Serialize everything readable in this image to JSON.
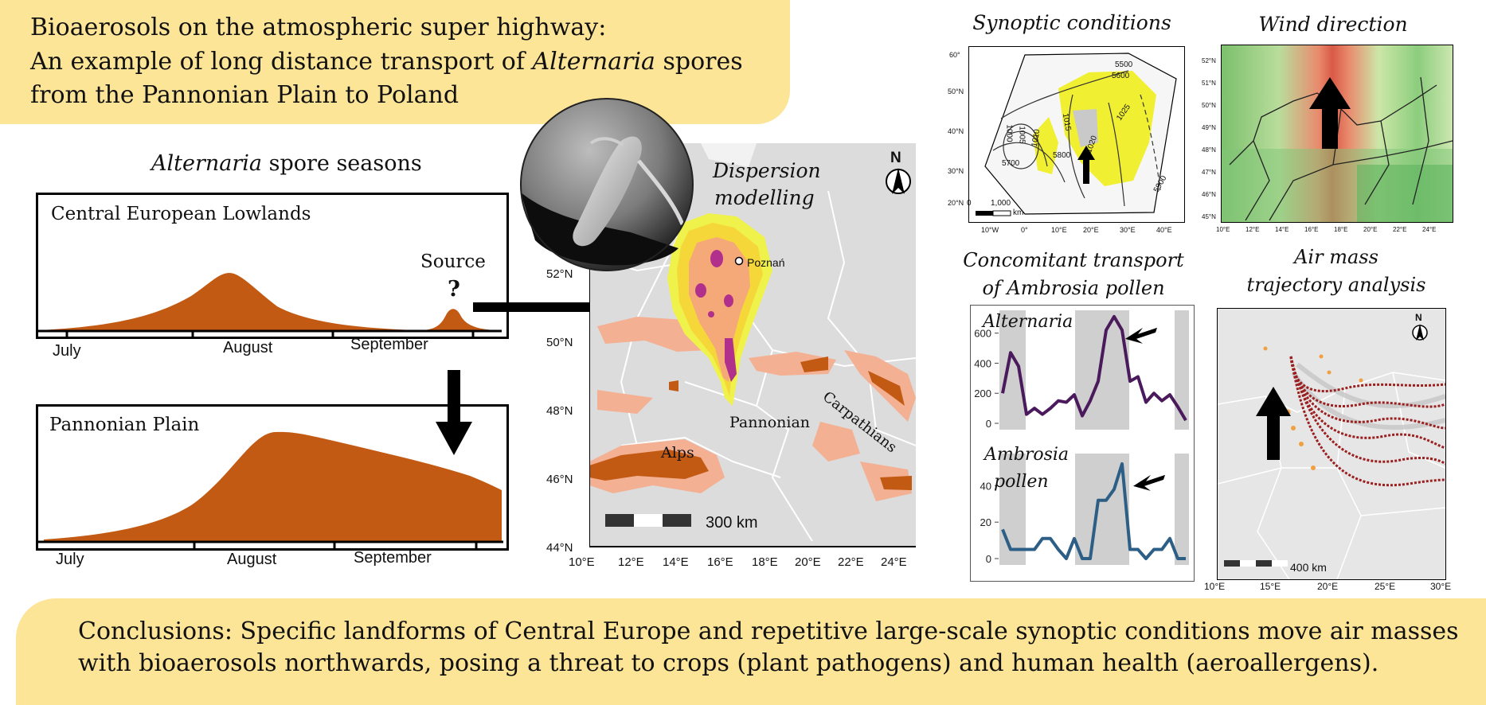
{
  "title": {
    "line1": "Bioaerosols on the atmospheric super highway:",
    "line2_pre": "An example of long distance transport of ",
    "line2_genus": "Alternaria",
    "line2_post": " spores",
    "line3": "from the Pannonian Plain to Poland"
  },
  "seasons": {
    "heading_genus": "Alternaria",
    "heading_rest": " spore seasons",
    "panel1": {
      "label": "Central European Lowlands",
      "source_label": "Source",
      "question": "?",
      "months": [
        "July",
        "August",
        "September"
      ]
    },
    "panel2": {
      "label": "Pannonian Plain",
      "months": [
        "July",
        "August",
        "September"
      ]
    }
  },
  "dispersion": {
    "title_line1": "Dispersion",
    "title_line2": "modelling",
    "north": "N",
    "city": "Poznań",
    "lat_labels": [
      "52°N",
      "50°N",
      "48°N",
      "46°N",
      "44°N"
    ],
    "lon_labels": [
      "10°E",
      "12°E",
      "14°E",
      "16°E",
      "18°E",
      "20°E",
      "22°E",
      "24°E"
    ],
    "labels": {
      "alps": "Alps",
      "carpathians": "Carpathians",
      "pannonian1": "Pannonian",
      "pannonian2": "Plain"
    },
    "scale": "300 km"
  },
  "synoptic": {
    "heading": "Synoptic conditions",
    "isobars": [
      "5500",
      "5600",
      "5700",
      "5800",
      "5900",
      "1000",
      "1005",
      "1010",
      "1015",
      "1020",
      "1025"
    ],
    "lat_labels": [
      "60°",
      "50°N",
      "40°N",
      "30°N",
      "20°N"
    ],
    "lon_labels": [
      "10°W",
      "0°",
      "10°E",
      "20°E",
      "30°E",
      "40°E"
    ],
    "scale_start": "0",
    "scale_value": "1,000",
    "scale_unit": "km"
  },
  "wind": {
    "heading": "Wind direction",
    "lat_labels": [
      "52°N",
      "51°N",
      "50°N",
      "49°N",
      "48°N",
      "47°N",
      "46°N",
      "45°N"
    ],
    "lon_labels": [
      "10°E",
      "12°E",
      "14°E",
      "16°E",
      "18°E",
      "20°E",
      "22°E",
      "24°E"
    ]
  },
  "concomitant": {
    "heading_line1": "Concomitant transport",
    "heading_line2": "of Ambrosia pollen",
    "series1_label": "Alternaria",
    "series2_label_line1": "Ambrosia",
    "series2_label_line2": "pollen",
    "colors": {
      "alternaria": "#4a1a5c",
      "ambrosia": "#2d5f86"
    }
  },
  "trajectory": {
    "heading_line1": "Air mass",
    "heading_line2": "trajectory analysis",
    "north": "N",
    "scale": "400 km",
    "lon_labels": [
      "10°E",
      "15°E",
      "20°E",
      "25°E",
      "30°E"
    ]
  },
  "conclusion": {
    "line1": "Conclusions: Specific landforms of Central Europe and repetitive large-scale synoptic conditions move air masses",
    "line2": "with bioaerosols northwards, posing a threat to crops (plant pathogens) and human health (aeroallergens)."
  },
  "chart_data": [
    {
      "type": "line",
      "title": "",
      "series": [
        {
          "name": "Alternaria",
          "values": [
            200,
            470,
            380,
            60,
            100,
            60,
            100,
            150,
            140,
            190,
            50,
            150,
            280,
            620,
            710,
            620,
            280,
            310,
            140,
            200,
            150,
            190,
            110,
            20
          ]
        }
      ],
      "yticks": [
        0,
        200,
        400,
        600
      ],
      "ylim": [
        0,
        720
      ],
      "shaded_intervals": [
        [
          0,
          2.5
        ],
        [
          9.5,
          15.5
        ],
        [
          22,
          23
        ]
      ]
    },
    {
      "type": "line",
      "title": "",
      "series": [
        {
          "name": "Ambrosia pollen",
          "values": [
            16,
            5,
            5,
            5,
            5,
            11,
            11,
            5,
            0,
            11,
            0,
            0,
            32,
            32,
            38,
            52,
            5,
            5,
            0,
            5,
            5,
            11,
            0,
            0
          ]
        }
      ],
      "yticks": [
        0,
        20,
        40
      ],
      "ylim": [
        0,
        55
      ],
      "shaded_intervals": [
        [
          0,
          2.5
        ],
        [
          9.5,
          15.5
        ],
        [
          22,
          23
        ]
      ]
    }
  ]
}
